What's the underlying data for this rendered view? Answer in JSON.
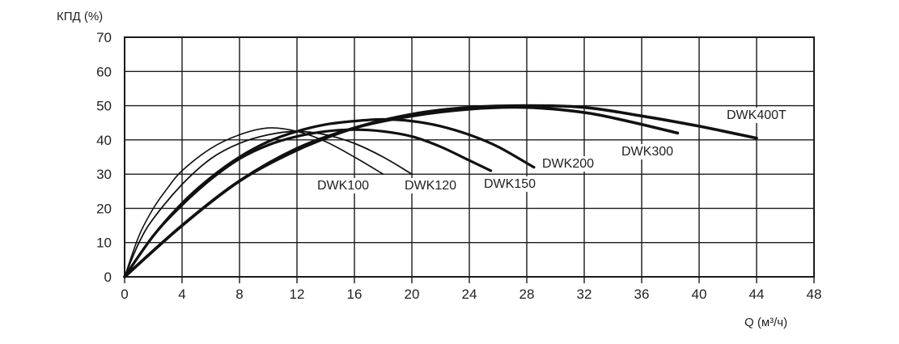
{
  "chart_data": {
    "type": "line",
    "title": "",
    "ylabel": "КПД (%)",
    "xlabel": "Q (м³/ч)",
    "xlim": [
      0,
      48
    ],
    "ylim": [
      0,
      70
    ],
    "xticks": [
      "0",
      "4",
      "8",
      "12",
      "16",
      "20",
      "24",
      "28",
      "32",
      "36",
      "40",
      "44",
      "48"
    ],
    "yticks": [
      "0",
      "10",
      "20",
      "30",
      "40",
      "50",
      "60",
      "70"
    ],
    "grid": true,
    "series": [
      {
        "name": "DWK100",
        "x": [
          0,
          1,
          2,
          3,
          4,
          6,
          8,
          10,
          12,
          14,
          16,
          18
        ],
        "y": [
          0,
          12,
          20,
          26,
          31,
          37.5,
          41.5,
          43.5,
          42.5,
          39.5,
          35,
          30
        ]
      },
      {
        "name": "DWK120",
        "x": [
          0,
          1,
          2,
          4,
          6,
          8,
          10,
          12,
          14,
          16,
          18,
          20
        ],
        "y": [
          0,
          10,
          17,
          27,
          34.5,
          39,
          41.5,
          42.5,
          41.5,
          39,
          35,
          30
        ]
      },
      {
        "name": "DWK150",
        "x": [
          0,
          2,
          4,
          6,
          8,
          10,
          12,
          14,
          16,
          18,
          20,
          22,
          24,
          25.5
        ],
        "y": [
          0,
          12,
          21,
          28.5,
          34.5,
          38.5,
          41,
          42.5,
          43,
          42.5,
          41,
          38,
          34,
          31
        ]
      },
      {
        "name": "DWK200",
        "x": [
          0,
          2,
          4,
          6,
          8,
          10,
          12,
          14,
          16,
          18,
          20,
          22,
          24,
          26,
          28.5
        ],
        "y": [
          0,
          12,
          21.5,
          29,
          35,
          39.5,
          42.5,
          44.5,
          45.5,
          46,
          45.5,
          44,
          41.5,
          38,
          32
        ]
      },
      {
        "name": "DWK300",
        "x": [
          0,
          4,
          8,
          12,
          16,
          20,
          24,
          28,
          32,
          35,
          38.5
        ],
        "y": [
          0,
          15,
          28,
          37.5,
          43.5,
          47,
          49,
          49.5,
          48,
          45.5,
          42
        ]
      },
      {
        "name": "DWK400T",
        "x": [
          0,
          4,
          8,
          12,
          16,
          20,
          24,
          28,
          32,
          36,
          40,
          44
        ],
        "y": [
          0,
          15,
          28,
          37,
          43.5,
          47.5,
          49.5,
          50,
          49.5,
          47,
          44,
          40.5
        ]
      }
    ]
  }
}
